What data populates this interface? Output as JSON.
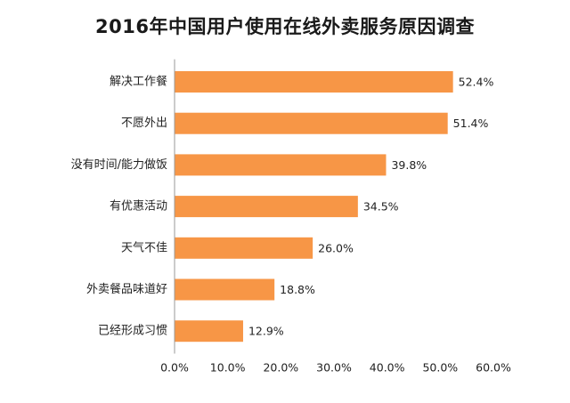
{
  "chart_data": {
    "type": "bar",
    "orientation": "horizontal",
    "title": "2016年中国用户使用在线外卖服务原因调查",
    "categories": [
      "解决工作餐",
      "不愿外出",
      "没有时间/能力做饭",
      "有优惠活动",
      "天气不佳",
      "外卖餐品味道好",
      "已经形成习惯"
    ],
    "values": [
      52.4,
      51.4,
      39.8,
      34.5,
      26.0,
      18.8,
      12.9
    ],
    "value_labels": [
      "52.4%",
      "51.4%",
      "39.8%",
      "34.5%",
      "26.0%",
      "18.8%",
      "12.9%"
    ],
    "xlim": [
      0,
      60
    ],
    "xticks": [
      0,
      10,
      20,
      30,
      40,
      50,
      60
    ],
    "xtick_labels": [
      "0.0%",
      "10.0%",
      "20.0%",
      "30.0%",
      "40.0%",
      "50.0%",
      "60.0%"
    ],
    "xlabel": "",
    "ylabel": "",
    "grid": false,
    "legend": "none",
    "bar_color": "#F79646",
    "axis_color": "#9a9a9a"
  }
}
